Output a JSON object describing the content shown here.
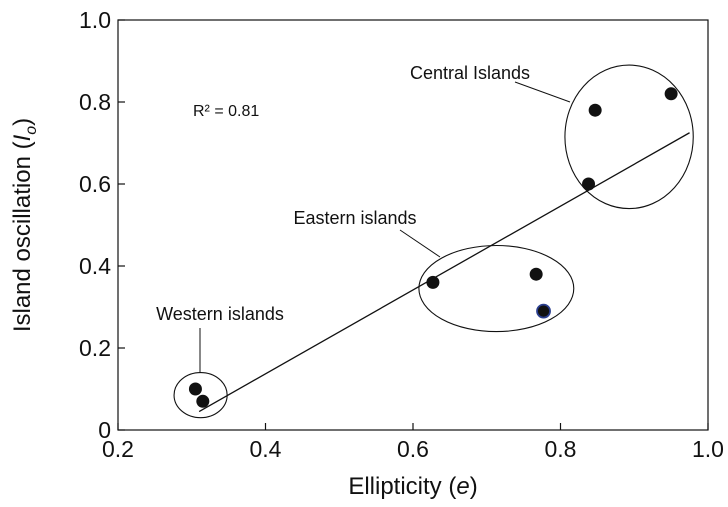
{
  "chart_data": {
    "type": "scatter",
    "title": "",
    "xlabel": "Ellipticity (e)",
    "ylabel": "Island oscillation (Io)",
    "xlabel_parts": {
      "main": "Ellipticity (",
      "var": "e",
      "close": ")"
    },
    "ylabel_parts": {
      "main": "Island oscillation (",
      "var": "I",
      "sub": "o",
      "close": ")"
    },
    "xlim": [
      0.2,
      1.0
    ],
    "ylim": [
      0,
      1.0
    ],
    "x_ticks": [
      0.2,
      0.4,
      0.6,
      0.8,
      1.0
    ],
    "x_tick_labels": [
      "0.2",
      "0.4",
      "0.6",
      "0.8",
      "1.0"
    ],
    "y_ticks": [
      0,
      0.2,
      0.4,
      0.6,
      0.8,
      1.0
    ],
    "y_tick_labels": [
      "0",
      "0.2",
      "0.4",
      "0.6",
      "0.8",
      "1.0"
    ],
    "grid": false,
    "r2_text": "R² = 0.81",
    "points": [
      {
        "x": 0.305,
        "y": 0.1,
        "group": "Western"
      },
      {
        "x": 0.315,
        "y": 0.07,
        "group": "Western"
      },
      {
        "x": 0.627,
        "y": 0.36,
        "group": "Eastern"
      },
      {
        "x": 0.767,
        "y": 0.38,
        "group": "Eastern"
      },
      {
        "x": 0.777,
        "y": 0.29,
        "group": "Eastern",
        "highlight": true
      },
      {
        "x": 0.838,
        "y": 0.6,
        "group": "Central"
      },
      {
        "x": 0.847,
        "y": 0.78,
        "group": "Central"
      },
      {
        "x": 0.95,
        "y": 0.82,
        "group": "Central"
      }
    ],
    "trendline": {
      "x": [
        0.31,
        0.975
      ],
      "y": [
        0.045,
        0.725
      ]
    },
    "groups": [
      {
        "name": "Western islands",
        "label": "Western islands",
        "ellipse": {
          "cx": 0.312,
          "cy": 0.085,
          "rx": 0.036,
          "ry": 0.055
        }
      },
      {
        "name": "Eastern islands",
        "label": "Eastern islands",
        "ellipse": {
          "cx": 0.713,
          "cy": 0.345,
          "rx": 0.105,
          "ry": 0.105
        }
      },
      {
        "name": "Central Islands",
        "label": "Central Islands",
        "ellipse": {
          "cx": 0.893,
          "cy": 0.715,
          "rx": 0.087,
          "ry": 0.175
        }
      }
    ],
    "colors": {
      "point": "#111111",
      "highlight_ring": "#2b3f8f",
      "line": "#111111",
      "ellipse": "#111111"
    }
  }
}
